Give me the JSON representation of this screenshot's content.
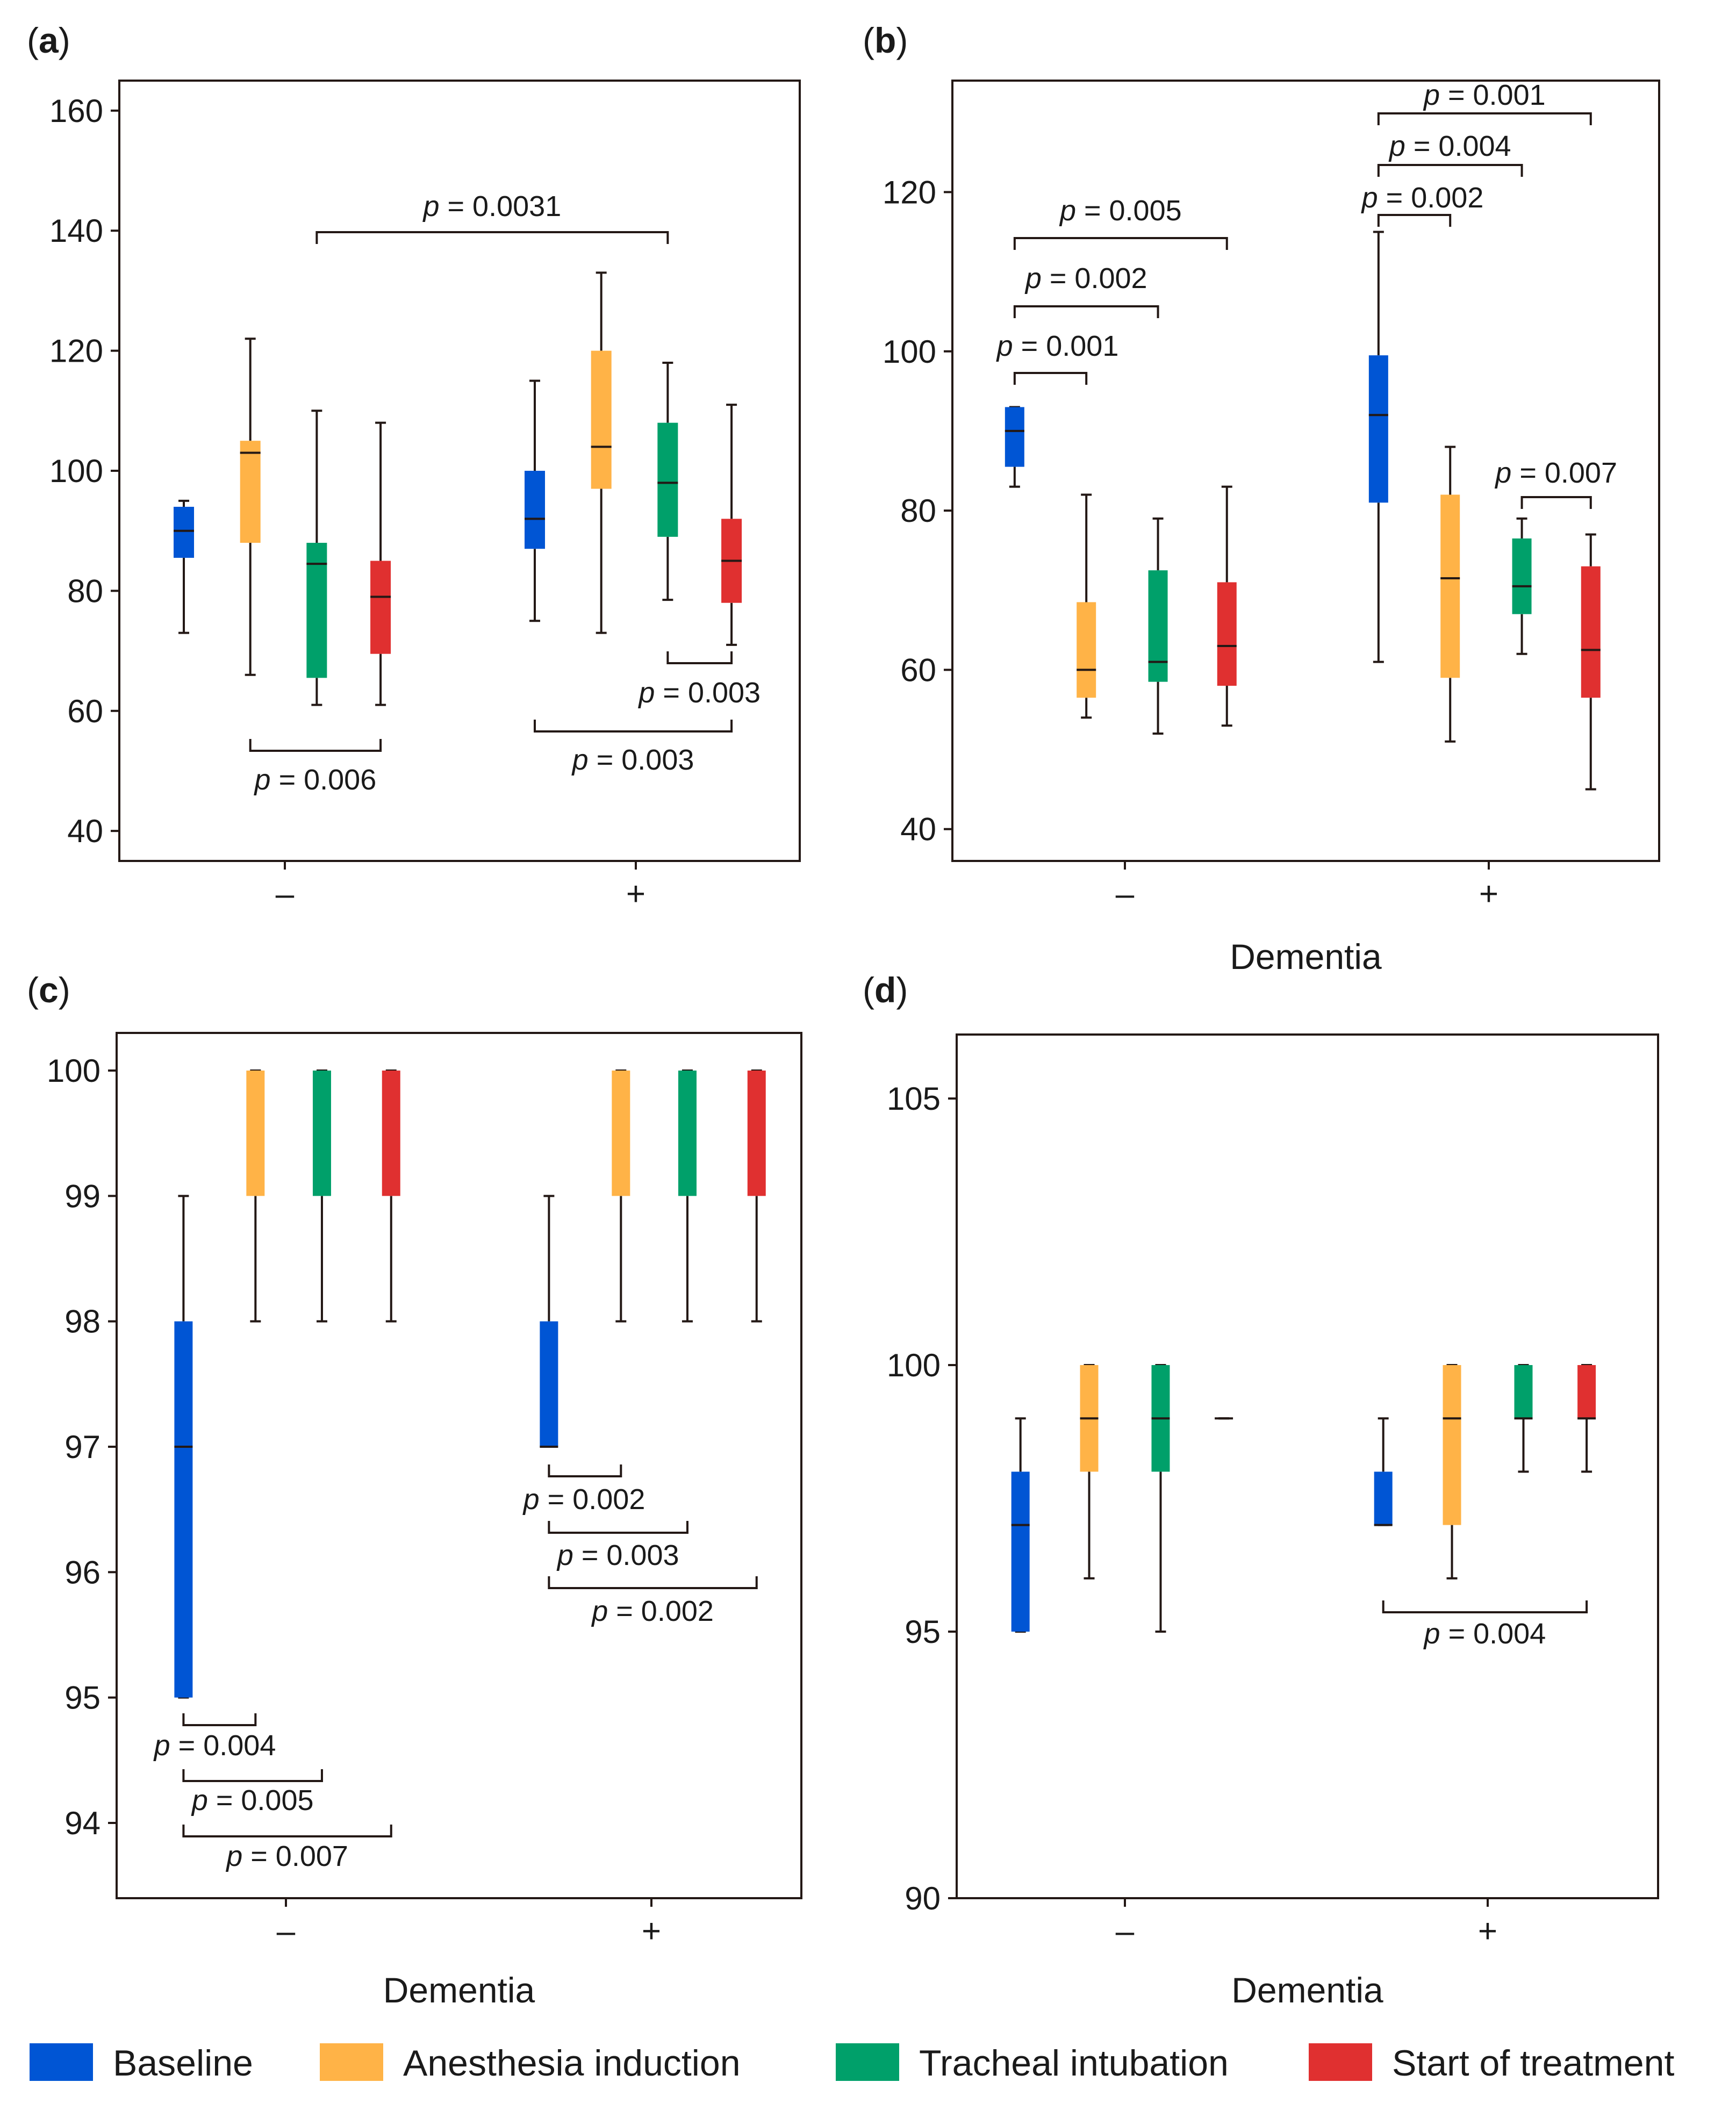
{
  "figure": {
    "legend": [
      {
        "label": "Baseline",
        "color": "#0055d4"
      },
      {
        "label": "Anesthesia induction",
        "color": "#ffb347"
      },
      {
        "label": "Tracheal intubation",
        "color": "#00a06a"
      },
      {
        "label": "Start of treatment",
        "color": "#e03030"
      }
    ]
  },
  "chart_data": [
    {
      "type": "box",
      "panel_label": "a",
      "xlabel": "",
      "categories": [
        "–",
        "+"
      ],
      "ylim": [
        35,
        165
      ],
      "yticks": [
        40,
        60,
        80,
        100,
        120,
        140,
        160
      ],
      "series": [
        {
          "name": "Baseline",
          "boxes": [
            {
              "whisker_low": 73,
              "q1": 85.5,
              "median": 90,
              "q3": 94,
              "whisker_high": 95
            },
            {
              "whisker_low": 75,
              "q1": 87,
              "median": 92,
              "q3": 100,
              "whisker_high": 115
            }
          ]
        },
        {
          "name": "Anesthesia induction",
          "boxes": [
            {
              "whisker_low": 66,
              "q1": 88,
              "median": 103,
              "q3": 105,
              "whisker_high": 122
            },
            {
              "whisker_low": 73,
              "q1": 97,
              "median": 104,
              "q3": 120,
              "whisker_high": 133
            }
          ]
        },
        {
          "name": "Tracheal intubation",
          "boxes": [
            {
              "whisker_low": 61,
              "q1": 65.5,
              "median": 84.5,
              "q3": 88,
              "whisker_high": 110
            },
            {
              "whisker_low": 78.5,
              "q1": 89,
              "median": 98,
              "q3": 108,
              "whisker_high": 118
            }
          ]
        },
        {
          "name": "Start of treatment",
          "boxes": [
            {
              "whisker_low": 61,
              "q1": 69.5,
              "median": 79,
              "q3": 85,
              "whisker_high": 108
            },
            {
              "whisker_low": 71,
              "q1": 78,
              "median": 85,
              "q3": 92,
              "whisker_high": 111
            }
          ]
        }
      ],
      "annotations": [
        {
          "text": "p = 0.0031",
          "from": [
            0,
            2
          ],
          "to": [
            1,
            2
          ]
        },
        {
          "text": "p = 0.006",
          "from": [
            0,
            1
          ],
          "to": [
            0,
            3
          ]
        },
        {
          "text": "p = 0.003",
          "from": [
            1,
            2
          ],
          "to": [
            1,
            3
          ]
        },
        {
          "text": "p = 0.003",
          "from": [
            1,
            0
          ],
          "to": [
            1,
            3
          ]
        }
      ]
    },
    {
      "type": "box",
      "panel_label": "b",
      "xlabel": "Dementia",
      "categories": [
        "–",
        "+"
      ],
      "ylim": [
        36,
        134
      ],
      "yticks": [
        40,
        60,
        80,
        100,
        120
      ],
      "series": [
        {
          "name": "Baseline",
          "boxes": [
            {
              "whisker_low": 83,
              "q1": 85.5,
              "median": 90,
              "q3": 93,
              "whisker_high": 93
            },
            {
              "whisker_low": 61,
              "q1": 81,
              "median": 92,
              "q3": 99.5,
              "whisker_high": 115
            }
          ]
        },
        {
          "name": "Anesthesia induction",
          "boxes": [
            {
              "whisker_low": 54,
              "q1": 56.5,
              "median": 60,
              "q3": 68.5,
              "whisker_high": 82
            },
            {
              "whisker_low": 51,
              "q1": 59,
              "median": 71.5,
              "q3": 82,
              "whisker_high": 88
            }
          ]
        },
        {
          "name": "Tracheal intubation",
          "boxes": [
            {
              "whisker_low": 52,
              "q1": 58.5,
              "median": 61,
              "q3": 72.5,
              "whisker_high": 79
            },
            {
              "whisker_low": 62,
              "q1": 67,
              "median": 70.5,
              "q3": 76.5,
              "whisker_high": 79
            }
          ]
        },
        {
          "name": "Start of treatment",
          "boxes": [
            {
              "whisker_low": 53,
              "q1": 58,
              "median": 63,
              "q3": 71,
              "whisker_high": 83
            },
            {
              "whisker_low": 45,
              "q1": 56.5,
              "median": 62.5,
              "q3": 73,
              "whisker_high": 77
            }
          ]
        }
      ],
      "annotations": [
        {
          "text": "p = 0.001",
          "from": [
            0,
            0
          ],
          "to": [
            0,
            1
          ]
        },
        {
          "text": "p = 0.002",
          "from": [
            0,
            0
          ],
          "to": [
            0,
            2
          ]
        },
        {
          "text": "p = 0.005",
          "from": [
            0,
            0
          ],
          "to": [
            0,
            3
          ]
        },
        {
          "text": "p = 0.002",
          "from": [
            1,
            0
          ],
          "to": [
            1,
            1
          ]
        },
        {
          "text": "p = 0.004",
          "from": [
            1,
            0
          ],
          "to": [
            1,
            2
          ]
        },
        {
          "text": "p = 0.001",
          "from": [
            1,
            0
          ],
          "to": [
            1,
            3
          ]
        },
        {
          "text": "p = 0.007",
          "from": [
            1,
            2
          ],
          "to": [
            1,
            3
          ]
        }
      ]
    },
    {
      "type": "box",
      "panel_label": "c",
      "xlabel": "Dementia",
      "categories": [
        "–",
        "+"
      ],
      "ylim": [
        93.4,
        100.3
      ],
      "yticks": [
        94,
        95,
        96,
        97,
        98,
        99,
        100
      ],
      "series": [
        {
          "name": "Baseline",
          "boxes": [
            {
              "whisker_low": 95,
              "q1": 95,
              "median": 97,
              "q3": 98,
              "whisker_high": 99
            },
            {
              "whisker_low": 97,
              "q1": 97,
              "median": 97,
              "q3": 98,
              "whisker_high": 99
            }
          ]
        },
        {
          "name": "Anesthesia induction",
          "boxes": [
            {
              "whisker_low": 98,
              "q1": 99,
              "median": 100,
              "q3": 100,
              "whisker_high": 100
            },
            {
              "whisker_low": 98,
              "q1": 99,
              "median": 100,
              "q3": 100,
              "whisker_high": 100
            }
          ]
        },
        {
          "name": "Tracheal intubation",
          "boxes": [
            {
              "whisker_low": 98,
              "q1": 99,
              "median": 100,
              "q3": 100,
              "whisker_high": 100
            },
            {
              "whisker_low": 98,
              "q1": 99,
              "median": 100,
              "q3": 100,
              "whisker_high": 100
            }
          ]
        },
        {
          "name": "Start of treatment",
          "boxes": [
            {
              "whisker_low": 98,
              "q1": 99,
              "median": 100,
              "q3": 100,
              "whisker_high": 100
            },
            {
              "whisker_low": 98,
              "q1": 99,
              "median": 100,
              "q3": 100,
              "whisker_high": 100
            }
          ]
        }
      ],
      "annotations": [
        {
          "text": "p = 0.004",
          "from": [
            0,
            0
          ],
          "to": [
            0,
            1
          ]
        },
        {
          "text": "p = 0.005",
          "from": [
            0,
            0
          ],
          "to": [
            0,
            2
          ]
        },
        {
          "text": "p = 0.007",
          "from": [
            0,
            0
          ],
          "to": [
            0,
            3
          ]
        },
        {
          "text": "p = 0.002",
          "from": [
            1,
            0
          ],
          "to": [
            1,
            1
          ]
        },
        {
          "text": "p = 0.003",
          "from": [
            1,
            0
          ],
          "to": [
            1,
            2
          ]
        },
        {
          "text": "p = 0.002",
          "from": [
            1,
            0
          ],
          "to": [
            1,
            3
          ]
        }
      ]
    },
    {
      "type": "box",
      "panel_label": "d",
      "xlabel": "Dementia",
      "categories": [
        "–",
        "+"
      ],
      "ylim": [
        90,
        106.2
      ],
      "yticks": [
        90,
        95,
        100,
        105
      ],
      "series": [
        {
          "name": "Baseline",
          "boxes": [
            {
              "whisker_low": 95,
              "q1": 95,
              "median": 97,
              "q3": 98,
              "whisker_high": 99
            },
            {
              "whisker_low": 97,
              "q1": 97,
              "median": 97,
              "q3": 98,
              "whisker_high": 99
            }
          ]
        },
        {
          "name": "Anesthesia induction",
          "boxes": [
            {
              "whisker_low": 96,
              "q1": 98,
              "median": 99,
              "q3": 100,
              "whisker_high": 100
            },
            {
              "whisker_low": 96,
              "q1": 97,
              "median": 99,
              "q3": 100,
              "whisker_high": 100
            }
          ]
        },
        {
          "name": "Tracheal intubation",
          "boxes": [
            {
              "whisker_low": 95,
              "q1": 98,
              "median": 99,
              "q3": 100,
              "whisker_high": 100
            },
            {
              "whisker_low": 98,
              "q1": 99,
              "median": 99,
              "q3": 100,
              "whisker_high": 100
            }
          ]
        },
        {
          "name": "Start of treatment",
          "boxes": [
            {
              "whisker_low": 99,
              "q1": 99,
              "median": 99,
              "q3": 99,
              "whisker_high": 99
            },
            {
              "whisker_low": 98,
              "q1": 99,
              "median": 99,
              "q3": 100,
              "whisker_high": 100
            }
          ]
        }
      ],
      "annotations": [
        {
          "text": "p = 0.004",
          "from": [
            1,
            0
          ],
          "to": [
            1,
            3
          ]
        }
      ]
    }
  ]
}
